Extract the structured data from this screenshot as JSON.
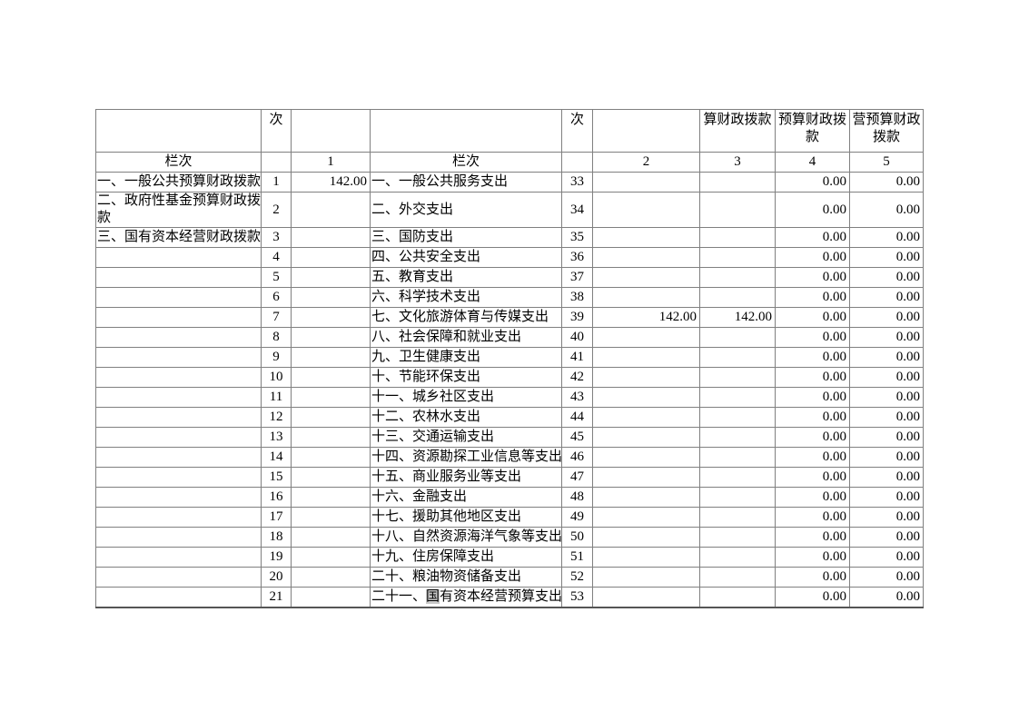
{
  "page": {
    "background": "#ffffff",
    "text_color": "#000000",
    "border_color": "#808080",
    "selection_highlight_color": "#c8c8c8"
  },
  "table": {
    "header_row1": [
      "",
      "次",
      "",
      "",
      "次",
      "",
      "算财政拨款",
      "预算财政拨\n款",
      "营预算财政\n拨款"
    ],
    "header_row2": [
      "栏次",
      "",
      "1",
      "栏次",
      "",
      "2",
      "3",
      "4",
      "5"
    ],
    "rows": [
      {
        "left_label": "一、一般公共预算财政拨款",
        "left_no": "1",
        "v1": "142.00",
        "right_label": "一、一般公共服务支出",
        "right_no": "33",
        "v2": "",
        "v3": "",
        "v4": "0.00",
        "v5": "0.00"
      },
      {
        "left_label": "二、政府性基金预算财政拨款",
        "left_no": "2",
        "v1": "",
        "right_label": "二、外交支出",
        "right_no": "34",
        "v2": "",
        "v3": "",
        "v4": "0.00",
        "v5": "0.00",
        "tall": true
      },
      {
        "left_label": "三、国有资本经营财政拨款",
        "left_no": "3",
        "v1": "",
        "right_label": "三、国防支出",
        "right_no": "35",
        "v2": "",
        "v3": "",
        "v4": "0.00",
        "v5": "0.00"
      },
      {
        "left_label": "",
        "left_no": "4",
        "v1": "",
        "right_label": "四、公共安全支出",
        "right_no": "36",
        "v2": "",
        "v3": "",
        "v4": "0.00",
        "v5": "0.00"
      },
      {
        "left_label": "",
        "left_no": "5",
        "v1": "",
        "right_label": "五、教育支出",
        "right_no": "37",
        "v2": "",
        "v3": "",
        "v4": "0.00",
        "v5": "0.00"
      },
      {
        "left_label": "",
        "left_no": "6",
        "v1": "",
        "right_label": "六、科学技术支出",
        "right_no": "38",
        "v2": "",
        "v3": "",
        "v4": "0.00",
        "v5": "0.00"
      },
      {
        "left_label": "",
        "left_no": "7",
        "v1": "",
        "right_label": "七、文化旅游体育与传媒支出",
        "right_no": "39",
        "v2": "142.00",
        "v3": "142.00",
        "v4": "0.00",
        "v5": "0.00"
      },
      {
        "left_label": "",
        "left_no": "8",
        "v1": "",
        "right_label": "八、社会保障和就业支出",
        "right_no": "40",
        "v2": "",
        "v3": "",
        "v4": "0.00",
        "v5": "0.00"
      },
      {
        "left_label": "",
        "left_no": "9",
        "v1": "",
        "right_label": "九、卫生健康支出",
        "right_no": "41",
        "v2": "",
        "v3": "",
        "v4": "0.00",
        "v5": "0.00"
      },
      {
        "left_label": "",
        "left_no": "10",
        "v1": "",
        "right_label": "十、节能环保支出",
        "right_no": "42",
        "v2": "",
        "v3": "",
        "v4": "0.00",
        "v5": "0.00"
      },
      {
        "left_label": "",
        "left_no": "11",
        "v1": "",
        "right_label": "十一、城乡社区支出",
        "right_no": "43",
        "v2": "",
        "v3": "",
        "v4": "0.00",
        "v5": "0.00"
      },
      {
        "left_label": "",
        "left_no": "12",
        "v1": "",
        "right_label": "十二、农林水支出",
        "right_no": "44",
        "v2": "",
        "v3": "",
        "v4": "0.00",
        "v5": "0.00"
      },
      {
        "left_label": "",
        "left_no": "13",
        "v1": "",
        "right_label": "十三、交通运输支出",
        "right_no": "45",
        "v2": "",
        "v3": "",
        "v4": "0.00",
        "v5": "0.00"
      },
      {
        "left_label": "",
        "left_no": "14",
        "v1": "",
        "right_label": "十四、资源勘探工业信息等支出",
        "right_no": "46",
        "v2": "",
        "v3": "",
        "v4": "0.00",
        "v5": "0.00"
      },
      {
        "left_label": "",
        "left_no": "15",
        "v1": "",
        "right_label": "十五、商业服务业等支出",
        "right_no": "47",
        "v2": "",
        "v3": "",
        "v4": "0.00",
        "v5": "0.00"
      },
      {
        "left_label": "",
        "left_no": "16",
        "v1": "",
        "right_label": "十六、金融支出",
        "right_no": "48",
        "v2": "",
        "v3": "",
        "v4": "0.00",
        "v5": "0.00"
      },
      {
        "left_label": "",
        "left_no": "17",
        "v1": "",
        "right_label": "十七、援助其他地区支出",
        "right_no": "49",
        "v2": "",
        "v3": "",
        "v4": "0.00",
        "v5": "0.00"
      },
      {
        "left_label": "",
        "left_no": "18",
        "v1": "",
        "right_label": "十八、自然资源海洋气象等支出",
        "right_no": "50",
        "v2": "",
        "v3": "",
        "v4": "0.00",
        "v5": "0.00"
      },
      {
        "left_label": "",
        "left_no": "19",
        "v1": "",
        "right_label": "十九、住房保障支出",
        "right_no": "51",
        "v2": "",
        "v3": "",
        "v4": "0.00",
        "v5": "0.00"
      },
      {
        "left_label": "",
        "left_no": "20",
        "v1": "",
        "right_label": "二十、粮油物资储备支出",
        "right_no": "52",
        "v2": "",
        "v3": "",
        "v4": "0.00",
        "v5": "0.00"
      },
      {
        "left_label": "",
        "left_no": "21",
        "v1": "",
        "right_label": "二十一、国有资本经营预算支出",
        "right_no": "53",
        "v2": "",
        "v3": "",
        "v4": "0.00",
        "v5": "0.00",
        "right_label_parts": {
          "pre": "二十一、",
          "hl": "国",
          "post": "有资本经营预算支出"
        }
      }
    ]
  }
}
